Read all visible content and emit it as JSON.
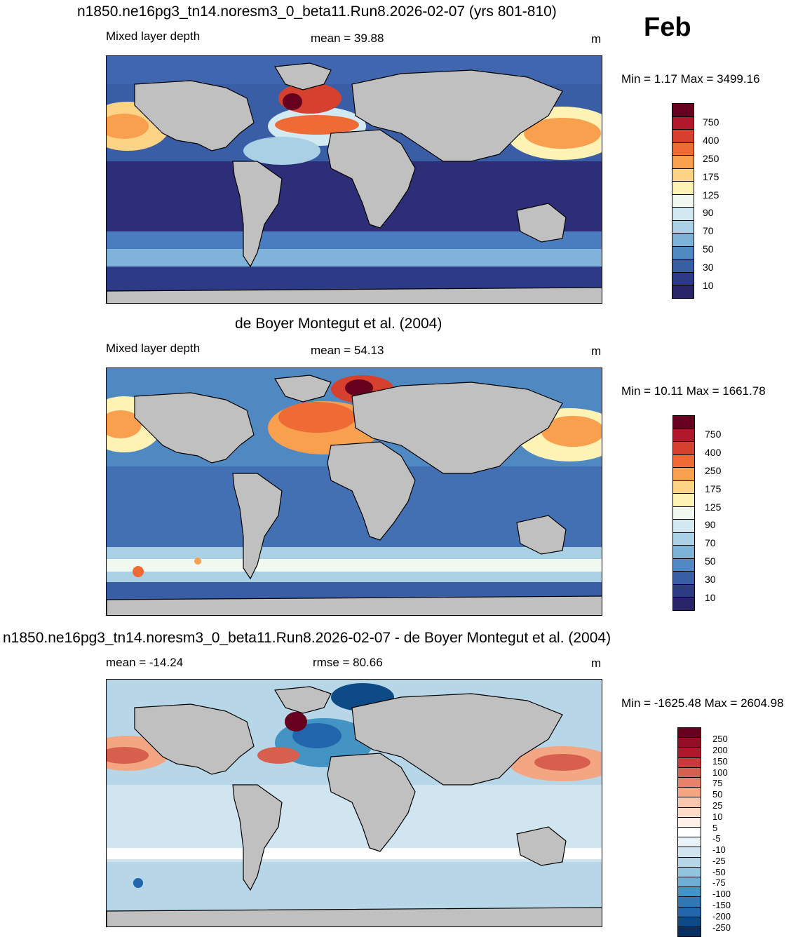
{
  "month_label": "Feb",
  "units": "m",
  "panels": [
    {
      "title": "n1850.ne16pg3_tn14.noresm3_0_beta11.Run8.2026-02-07 (yrs 801-810)",
      "left_label": "Mixed layer depth",
      "center_label": "mean =  39.88",
      "units": "m",
      "minmax": "Min =   1.17 Max = 3499.16"
    },
    {
      "title": "de Boyer Montegut et al. (2004)",
      "left_label": "Mixed layer depth",
      "center_label": "mean =  54.13",
      "units": "m",
      "minmax": "Min =  10.11 Max = 1661.78"
    },
    {
      "title": "n1850.ne16pg3_tn14.noresm3_0_beta11.Run8.2026-02-07 - de Boyer Montegut et al. (2004)",
      "left_label": "mean = -14.24",
      "center_label": "rmse =  80.66",
      "units": "m",
      "minmax": "Min = -1625.48 Max = 2604.98"
    }
  ],
  "colorbar_abs": {
    "labels": [
      "750",
      "400",
      "250",
      "175",
      "125",
      "90",
      "70",
      "50",
      "30",
      "10"
    ],
    "colors": [
      "#67001f",
      "#b2182b",
      "#d6402f",
      "#ef6b35",
      "#f9a04f",
      "#fdd385",
      "#fef3b5",
      "#f0f8f0",
      "#d3e9f2",
      "#a9d0e5",
      "#7bb2d6",
      "#5088c2",
      "#3a5ea6",
      "#2d3a85",
      "#282467"
    ]
  },
  "colorbar_diff": {
    "labels": [
      "250",
      "200",
      "150",
      "100",
      "75",
      "50",
      "25",
      "10",
      "5",
      "-5",
      "-10",
      "-25",
      "-50",
      "-75",
      "-100",
      "-150",
      "-200",
      "-250"
    ],
    "colors": [
      "#67001f",
      "#930f26",
      "#b2182b",
      "#c93a3a",
      "#d6604d",
      "#e58267",
      "#f4a582",
      "#f9c7ad",
      "#fddbc7",
      "#fff1e9",
      "#ffffff",
      "#e8f2f8",
      "#d1e5f0",
      "#b7d7e9",
      "#92c5de",
      "#6eaed3",
      "#4393c3",
      "#2f78b4",
      "#2166ac",
      "#0e4a86",
      "#053061"
    ]
  }
}
